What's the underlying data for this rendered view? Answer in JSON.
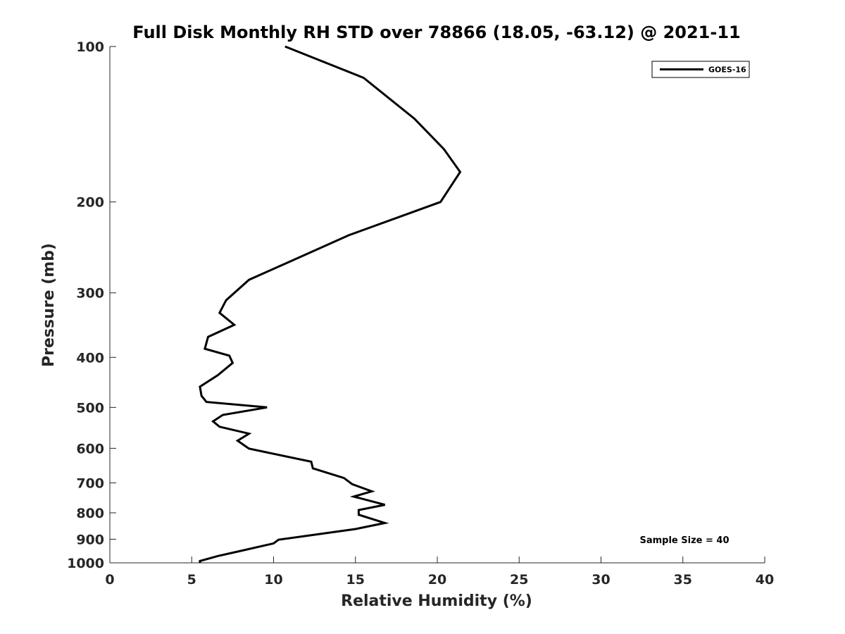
{
  "chart_data": {
    "type": "line",
    "title": "Full Disk Monthly RH STD over 78866 (18.05, -63.12) @ 2021-11",
    "xlabel": "Relative Humidity (%)",
    "ylabel": "Pressure (mb)",
    "xlim": [
      0,
      40
    ],
    "ylim": [
      1000,
      100
    ],
    "y_scale": "log",
    "y_reversed": true,
    "grid": false,
    "legend_position": "top-right",
    "xticks": [
      0,
      5,
      10,
      15,
      20,
      25,
      30,
      35,
      40
    ],
    "xtick_labels": [
      "0",
      "5",
      "10",
      "15",
      "20",
      "25",
      "30",
      "35",
      "40"
    ],
    "yticks": [
      100,
      200,
      300,
      400,
      500,
      600,
      700,
      800,
      900,
      1000
    ],
    "ytick_labels": [
      "100",
      "200",
      "300",
      "400",
      "500",
      "600",
      "700",
      "800",
      "900",
      "1000"
    ],
    "series": [
      {
        "name": "GOES-16",
        "color": "#000000",
        "x": [
          10.7,
          15.5,
          18.6,
          20.4,
          21.4,
          20.2,
          14.6,
          11.1,
          8.5,
          7.1,
          6.7,
          7.6,
          6.0,
          5.8,
          7.3,
          7.5,
          6.6,
          5.5,
          5.6,
          5.9,
          9.6,
          6.9,
          6.3,
          6.7,
          8.5,
          7.8,
          8.5,
          12.3,
          12.4,
          14.3,
          14.8,
          16.0,
          14.9,
          16.8,
          15.2,
          15.2,
          16.8,
          15.0,
          10.3,
          10.0,
          8.0,
          6.6,
          5.5,
          5.5
        ],
        "y": [
          100,
          115,
          138,
          158,
          175,
          200,
          232,
          260,
          283,
          310,
          328,
          346,
          365,
          385,
          397,
          410,
          433,
          456,
          475,
          488,
          500,
          517,
          532,
          545,
          562,
          580,
          601,
          637,
          656,
          685,
          704,
          727,
          744,
          772,
          790,
          807,
          837,
          860,
          902,
          917,
          948,
          970,
          992,
          1000
        ]
      }
    ],
    "annotations": [
      "Sample Size = 40"
    ]
  }
}
